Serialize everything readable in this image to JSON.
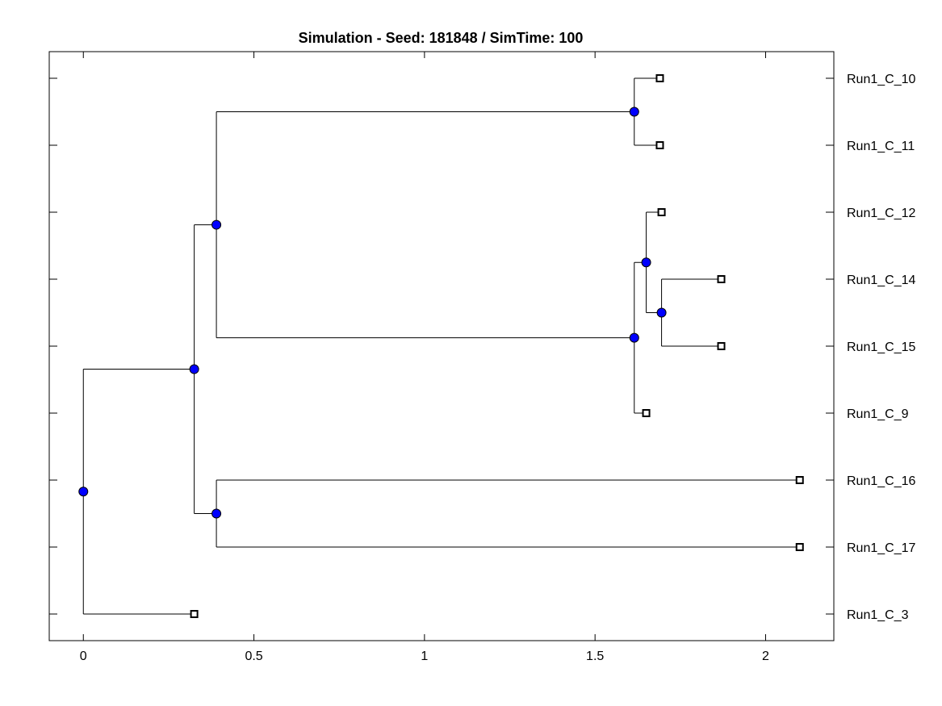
{
  "chart_data": {
    "type": "dendrogram",
    "title": "Simulation - Seed: 181848 / SimTime: 100",
    "xlabel": "",
    "ylabel": "",
    "xlim": [
      -0.1,
      2.2
    ],
    "x_ticks": [
      0,
      0.5,
      1,
      1.5,
      2
    ],
    "x_tick_labels": [
      "0",
      "0.5",
      "1",
      "1.5",
      "2"
    ],
    "grid": false,
    "leaf_order": [
      "Run1_C_10",
      "Run1_C_11",
      "Run1_C_12",
      "Run1_C_14",
      "Run1_C_15",
      "Run1_C_9",
      "Run1_C_16",
      "Run1_C_17",
      "Run1_C_3"
    ],
    "leaves": [
      {
        "label": "Run1_C_10",
        "x": 1.69
      },
      {
        "label": "Run1_C_11",
        "x": 1.69
      },
      {
        "label": "Run1_C_12",
        "x": 1.695
      },
      {
        "label": "Run1_C_14",
        "x": 1.87
      },
      {
        "label": "Run1_C_15",
        "x": 1.87
      },
      {
        "label": "Run1_C_9",
        "x": 1.65
      },
      {
        "label": "Run1_C_16",
        "x": 2.1
      },
      {
        "label": "Run1_C_17",
        "x": 2.1
      },
      {
        "label": "Run1_C_3",
        "x": 0.325
      }
    ],
    "internal_nodes": [
      {
        "id": "root",
        "x": 0.0,
        "children": [
          "n1",
          "Run1_C_3"
        ]
      },
      {
        "id": "n1",
        "x": 0.325,
        "children": [
          "n2",
          "n7"
        ]
      },
      {
        "id": "n2",
        "x": 0.39,
        "children": [
          "n3",
          "n4"
        ]
      },
      {
        "id": "n3",
        "x": 1.615,
        "children": [
          "Run1_C_10",
          "Run1_C_11"
        ]
      },
      {
        "id": "n4",
        "x": 1.615,
        "children": [
          "n5",
          "Run1_C_9"
        ]
      },
      {
        "id": "n5",
        "x": 1.65,
        "children": [
          "Run1_C_12",
          "n6"
        ]
      },
      {
        "id": "n6",
        "x": 1.695,
        "children": [
          "Run1_C_14",
          "Run1_C_15"
        ]
      },
      {
        "id": "n7",
        "x": 0.39,
        "children": [
          "Run1_C_16",
          "Run1_C_17"
        ]
      }
    ],
    "colors": {
      "internal_node_fill": "#0000ff",
      "leaf_marker_fill": "#ffffff",
      "line": "#000000"
    }
  }
}
